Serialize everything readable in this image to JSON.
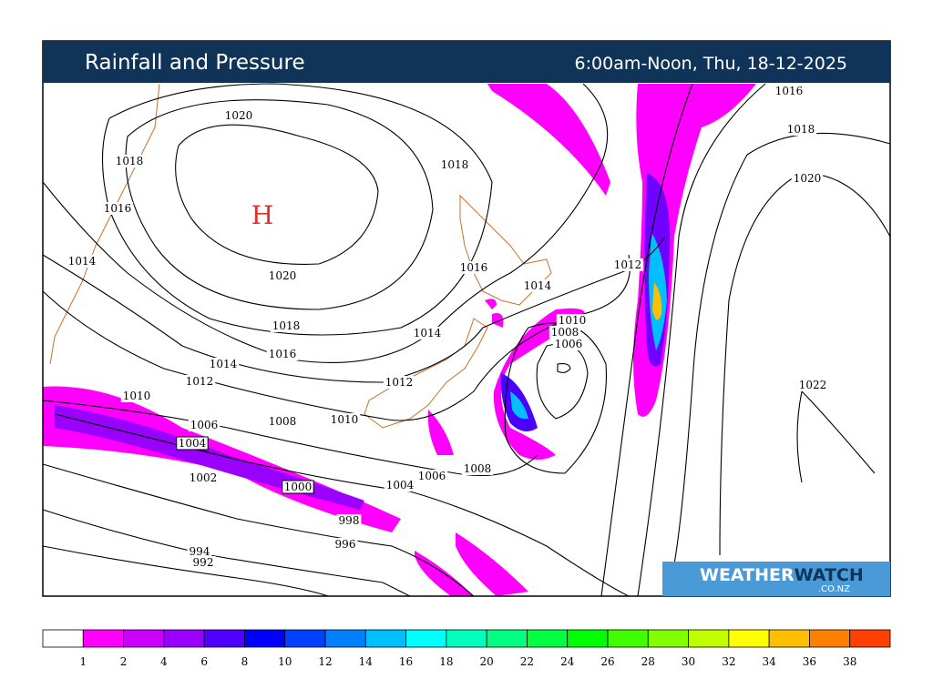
{
  "header": {
    "title": "Rainfall and Pressure",
    "time": "6:00am-Noon, Thu, 18-12-2025"
  },
  "map": {
    "high_label": "H",
    "isobar_labels": [
      "1020",
      "1018",
      "1016",
      "1014",
      "1020",
      "1018",
      "1016",
      "1014",
      "1012",
      "1010",
      "1006",
      "1004",
      "1008",
      "1010",
      "1012",
      "1014",
      "1016",
      "1014",
      "1018",
      "1012",
      "1010",
      "1008",
      "1006",
      "1016",
      "1018",
      "1020",
      "1022",
      "1002",
      "1000",
      "1004",
      "1006",
      "1008",
      "998",
      "996",
      "994",
      "992"
    ]
  },
  "logo": {
    "brand_1": "WEATHER",
    "brand_2": "WATCH",
    "domain": ".CO.NZ"
  },
  "legend": {
    "labels": [
      "1",
      "2",
      "4",
      "6",
      "8",
      "10",
      "12",
      "14",
      "16",
      "18",
      "20",
      "22",
      "24",
      "26",
      "28",
      "30",
      "32",
      "34",
      "36",
      "38"
    ],
    "colors": [
      "#ffffff",
      "#ff00ff",
      "#cc00ff",
      "#9900ff",
      "#5000ff",
      "#0000ff",
      "#0040ff",
      "#0080ff",
      "#00bfff",
      "#00ffff",
      "#00ffbf",
      "#00ff80",
      "#00ff40",
      "#00ff00",
      "#40ff00",
      "#80ff00",
      "#bfff00",
      "#ffff00",
      "#ffbf00",
      "#ff8000",
      "#ff4000"
    ]
  }
}
